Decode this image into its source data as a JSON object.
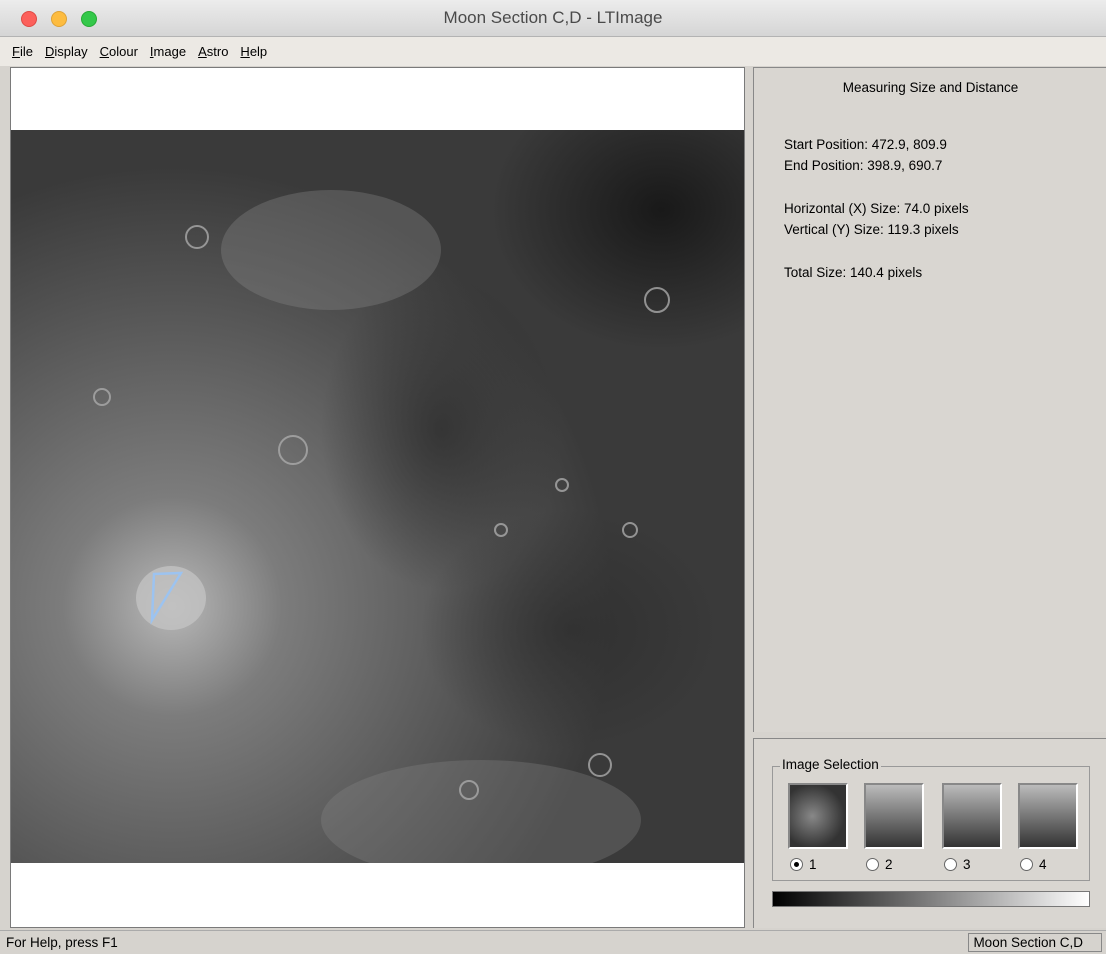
{
  "window": {
    "title": "Moon Section C,D - LTImage"
  },
  "menu": [
    "File",
    "Display",
    "Colour",
    "Image",
    "Astro",
    "Help"
  ],
  "panel": {
    "heading": "Measuring Size and Distance",
    "lines": [
      "Start Position: 472.9, 809.9",
      "End Position: 398.9, 690.7",
      "Horizontal (X) Size: 74.0 pixels",
      "Vertical (Y) Size: 119.3 pixels",
      "Total Size: 140.4 pixels"
    ]
  },
  "image_selection": {
    "label": "Image Selection",
    "options": [
      "1",
      "2",
      "3",
      "4"
    ]
  },
  "status": {
    "left": "For Help, press F1",
    "right": "Moon Section C,D"
  }
}
